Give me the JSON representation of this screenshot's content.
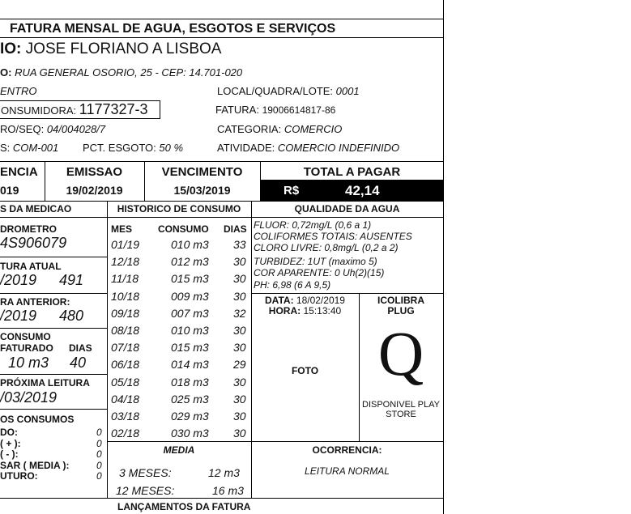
{
  "title": "FATURA MENSAL DE AGUA, ESGOTOS E SERVIÇOS",
  "customer": {
    "label": "IO:",
    "name": "JOSE FLORIANO A LISBOA"
  },
  "address": {
    "label": "O:",
    "value": "RUA GENERAL OSORIO, 25 - CEP: 14.701-020"
  },
  "district": "ENTRO",
  "local": {
    "label": "LOCAL/QUADRA/LOTE:",
    "value": "0001"
  },
  "unit": {
    "label": "ONSUMIDORA:",
    "value": "1177327-3"
  },
  "invoice": {
    "label": "FATURA:",
    "value": "19006614817-86"
  },
  "route": {
    "label": "RO/SEQ:",
    "value": "04/004028/7"
  },
  "category": {
    "label": "CATEGORIA:",
    "value": "COMERCIO"
  },
  "tariff": {
    "label": "S:",
    "value": "COM-001"
  },
  "sewer": {
    "label": "PCT. ESGOTO:",
    "value": "50 %"
  },
  "activity": {
    "label": "ATIVIDADE:",
    "value": "COMERCIO INDEFINIDO"
  },
  "reference": {
    "label": "ENCIA",
    "value": "019"
  },
  "issue": {
    "label": "EMISSAO",
    "value": "19/02/2019"
  },
  "due": {
    "label": "VENCIMENTO",
    "value": "15/03/2019"
  },
  "total": {
    "label": "TOTAL A PAGAR",
    "currency": "R$",
    "value": "42,14"
  },
  "measurement": {
    "header": "S DA MEDICAO",
    "meter_label": "DROMETRO",
    "meter": "4S906079",
    "current_label": "TURA ATUAL",
    "current_date": "/2019",
    "current_value": "491",
    "previous_label": "RA ANTERIOR:",
    "previous_date": "/2019",
    "previous_value": "480",
    "consumption_label": "CONSUMO",
    "billed_label": "FATURADO",
    "days_label": "DIAS",
    "billed": "10 m3",
    "days": "40",
    "next_label": "PRÓXIMA LEITURA",
    "next_date": "/03/2019",
    "consumptions_header": "OS CONSUMOS",
    "items": [
      {
        "label": "DO:",
        "value": "0"
      },
      {
        "label": "( + ):",
        "value": "0"
      },
      {
        "label": "( - ):",
        "value": "0"
      },
      {
        "label": "SAR ( MEDIA ):",
        "value": "0"
      },
      {
        "label": "UTURO:",
        "value": "0"
      }
    ]
  },
  "history": {
    "header": "HISTORICO DE CONSUMO",
    "columns": [
      "MES",
      "CONSUMO",
      "DIAS"
    ],
    "rows": [
      [
        "01/19",
        "010 m3",
        "33"
      ],
      [
        "12/18",
        "012 m3",
        "30"
      ],
      [
        "11/18",
        "015 m3",
        "30"
      ],
      [
        "10/18",
        "009 m3",
        "30"
      ],
      [
        "09/18",
        "007 m3",
        "32"
      ],
      [
        "08/18",
        "010 m3",
        "30"
      ],
      [
        "07/18",
        "015 m3",
        "30"
      ],
      [
        "06/18",
        "014 m3",
        "29"
      ],
      [
        "05/18",
        "018 m3",
        "30"
      ],
      [
        "04/18",
        "025 m3",
        "30"
      ],
      [
        "03/18",
        "029 m3",
        "30"
      ],
      [
        "02/18",
        "030 m3",
        "30"
      ]
    ],
    "media_label": "MEDIA",
    "m3_label": "3 MESES:",
    "m3": "12 m3",
    "m12_label": "12 MESES:",
    "m12": "16 m3"
  },
  "quality": {
    "header": "QUALIDADE DA AGUA",
    "lines": [
      "FLUOR: 0,72mg/L (0,6 a 1)",
      "COLIFORMES TOTAIS: AUSENTES",
      "CLORO LIVRE: 0,8mg/L (0,2 a 2)",
      "TURBIDEZ: 1UT (maximo 5)",
      "COR APARENTE: 0 Uh(2)(15)",
      "PH: 6,98 (6 A 9,5)"
    ]
  },
  "photo": {
    "date_label": "DATA:",
    "date": "18/02/2019",
    "time_label": "HORA:",
    "time": "15:13:40",
    "label": "FOTO"
  },
  "app": {
    "name1": "ICOLIBRA",
    "name2": "PLUG",
    "logo_letter": "Q",
    "store1": "DISPONIVEL PLAY",
    "store2": "STORE"
  },
  "occurrence": {
    "label": "OCORRENCIA:",
    "value": "LEITURA NORMAL"
  },
  "entries_header": "LANÇAMENTOS DA FATURA"
}
